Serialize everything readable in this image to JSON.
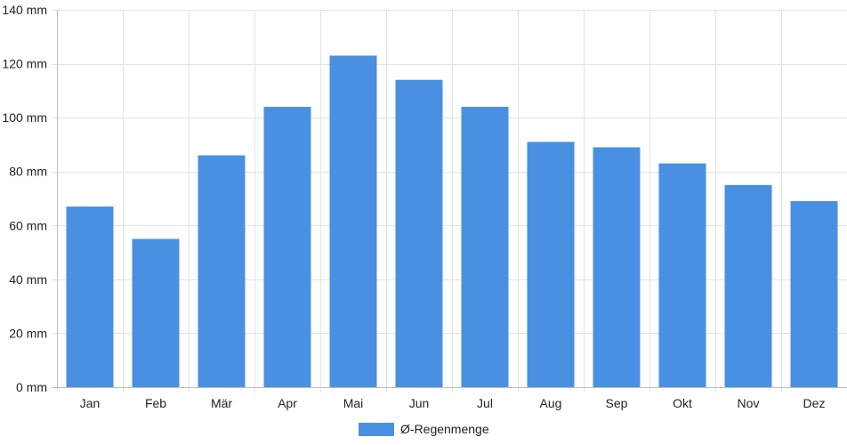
{
  "chart_data": {
    "type": "bar",
    "categories": [
      "Jan",
      "Feb",
      "Mär",
      "Apr",
      "Mai",
      "Jun",
      "Jul",
      "Aug",
      "Sep",
      "Okt",
      "Nov",
      "Dez"
    ],
    "series": [
      {
        "name": "Ø-Regenmenge",
        "values": [
          67,
          55,
          86,
          104,
          123,
          114,
          104,
          91,
          89,
          83,
          75,
          69
        ],
        "color": "#4a90e2"
      }
    ],
    "y_unit": "mm",
    "ylim": [
      0,
      140
    ],
    "y_ticks": [
      0,
      20,
      40,
      60,
      80,
      100,
      120,
      140
    ],
    "y_tick_labels": [
      "0 mm",
      "20 mm",
      "40 mm",
      "60 mm",
      "80 mm",
      "100 mm",
      "120 mm",
      "140 mm"
    ],
    "grid": true,
    "legend_position": "bottom-center"
  }
}
